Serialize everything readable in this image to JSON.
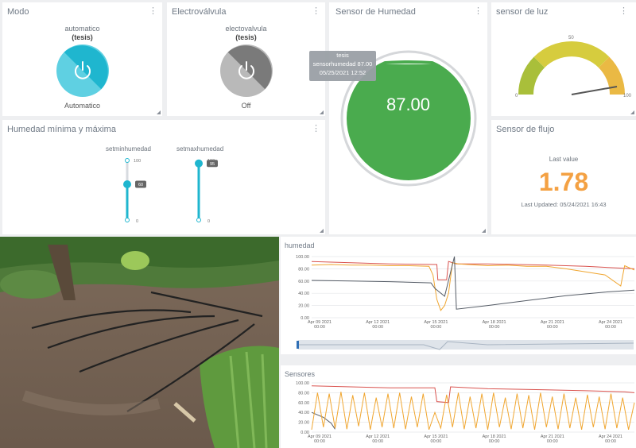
{
  "widgets": {
    "modo": {
      "title": "Modo",
      "device": "automatico",
      "group": "(tesis)",
      "state": "Automatico",
      "color": "#1fb6cf"
    },
    "valve": {
      "title": "Electroválvula",
      "device": "electovalvula",
      "group": "(tesis)",
      "state": "Off",
      "color": "#9a9a9a"
    },
    "humidity": {
      "title": "Sensor de Humedad",
      "value": "87.00",
      "color": "#4aab4e",
      "tooltip": {
        "line1": "tesis",
        "line2": "sensorhumedad 87.00",
        "line3": "05/25/2021 12:52"
      }
    },
    "light": {
      "title": "sensor de luz",
      "min": "0",
      "mid": "50",
      "max": "100"
    },
    "minmax": {
      "title": "Humedad mínima y máxima",
      "min_slider": {
        "label": "setminhumedad",
        "top": "100",
        "bottom": "0",
        "value": "60",
        "level": 60
      },
      "max_slider": {
        "label": "setmaxhumedad",
        "top": "100",
        "bottom": "0",
        "value": "95",
        "level": 95
      }
    },
    "flow": {
      "title": "Sensor de flujo",
      "caption": "Last value",
      "value": "1.78",
      "updated": "Last Updated: 05/24/2021 16:43"
    }
  },
  "charts": {
    "humedad": {
      "title": "humedad"
    },
    "sensores": {
      "title": "Sensores"
    }
  },
  "chart_data": [
    {
      "type": "line",
      "title": "humedad",
      "ylim": [
        0,
        100
      ],
      "y_ticks": [
        "0.00",
        "20.00",
        "40.00",
        "60.00",
        "80.00",
        "100.00"
      ],
      "x_ticks": [
        {
          "date": "Apr 09 2021",
          "time": "00:00"
        },
        {
          "date": "Apr 12 2021",
          "time": "00:00"
        },
        {
          "date": "Apr 15 2021",
          "time": "00:00"
        },
        {
          "date": "Apr 18 2021",
          "time": "00:00"
        },
        {
          "date": "Apr 21 2021",
          "time": "00:00"
        },
        {
          "date": "Apr 24 2021",
          "time": "00:00"
        }
      ],
      "xlim": [
        0,
        16.5
      ],
      "series": [
        {
          "color": "#d9534f",
          "x": [
            0,
            2,
            4,
            6.4,
            6.45,
            6.9,
            7.0,
            7.4,
            9,
            12,
            14,
            16.5
          ],
          "y": [
            92,
            90,
            88,
            87,
            62,
            62,
            92,
            88,
            88,
            86,
            84,
            80
          ]
        },
        {
          "color": "#f0a630",
          "x": [
            0,
            1,
            2,
            3,
            4,
            5,
            6,
            6.2,
            6.4,
            6.6,
            6.8,
            7.0,
            7.2,
            7.5,
            8,
            9,
            10,
            11,
            12,
            13,
            14,
            15,
            15.8,
            16,
            16.5
          ],
          "y": [
            86,
            87,
            86,
            86,
            85,
            85,
            84,
            70,
            30,
            12,
            20,
            40,
            90,
            88,
            87,
            85,
            86,
            84,
            84,
            80,
            75,
            70,
            52,
            85,
            78
          ]
        },
        {
          "color": "#555c66",
          "x": [
            0,
            2,
            4,
            6.1,
            6.3,
            6.8,
            7.3,
            7.4,
            9,
            11,
            13,
            15,
            16.5
          ],
          "y": [
            61,
            60,
            59,
            57,
            48,
            35,
            100,
            14,
            20,
            28,
            36,
            42,
            45
          ]
        }
      ]
    },
    {
      "type": "line",
      "title": "Sensores",
      "ylim": [
        0,
        100
      ],
      "y_ticks": [
        "0.00",
        "20.00",
        "40.00",
        "60.00",
        "80.00",
        "100.00"
      ],
      "x_ticks": [
        {
          "date": "Apr 09 2021",
          "time": "00:00"
        },
        {
          "date": "Apr 12 2021",
          "time": "00:00"
        },
        {
          "date": "Apr 15 2021",
          "time": "00:00"
        },
        {
          "date": "Apr 18 2021",
          "time": "00:00"
        },
        {
          "date": "Apr 21 2021",
          "time": "00:00"
        },
        {
          "date": "Apr 24 2021",
          "time": "00:00"
        }
      ],
      "xlim": [
        0,
        16.5
      ],
      "series": [
        {
          "color": "#d9534f",
          "x": [
            0,
            2,
            4,
            6.3,
            6.4,
            7.0,
            7.1,
            9,
            12,
            14,
            16,
            16.5
          ],
          "y": [
            94,
            92,
            90,
            90,
            62,
            60,
            92,
            88,
            86,
            84,
            82,
            80
          ]
        },
        {
          "color": "#555c66",
          "x": [
            0,
            0.6,
            1.0,
            1.2
          ],
          "y": [
            40,
            30,
            18,
            6
          ]
        },
        {
          "color": "#f0a630",
          "x": [
            0.0,
            0.3,
            0.6,
            0.9,
            1.2,
            1.5,
            1.8,
            2.1,
            2.4,
            2.7,
            3.0,
            3.3,
            3.6,
            3.9,
            4.2,
            4.5,
            4.8,
            5.1,
            5.4,
            5.7,
            6.0,
            6.3,
            6.6,
            6.9,
            7.2,
            7.5,
            7.8,
            8.1,
            8.4,
            8.7,
            9.0,
            9.3,
            9.6,
            9.9,
            10.2,
            10.5,
            10.8,
            11.1,
            11.4,
            11.7,
            12.0,
            12.3,
            12.6,
            12.9,
            13.2,
            13.5,
            13.8,
            14.1,
            14.4,
            14.7,
            15.0,
            15.3,
            15.6,
            15.9,
            16.2,
            16.5
          ],
          "y": [
            5,
            80,
            10,
            78,
            8,
            82,
            6,
            75,
            12,
            80,
            5,
            70,
            10,
            78,
            8,
            80,
            6,
            72,
            10,
            78,
            5,
            40,
            8,
            76,
            10,
            80,
            6,
            72,
            8,
            78,
            5,
            80,
            10,
            70,
            6,
            78,
            8,
            75,
            5,
            80,
            10,
            72,
            6,
            78,
            8,
            70,
            5,
            76,
            10,
            72,
            6,
            78,
            8,
            70,
            5,
            60
          ]
        }
      ]
    }
  ]
}
